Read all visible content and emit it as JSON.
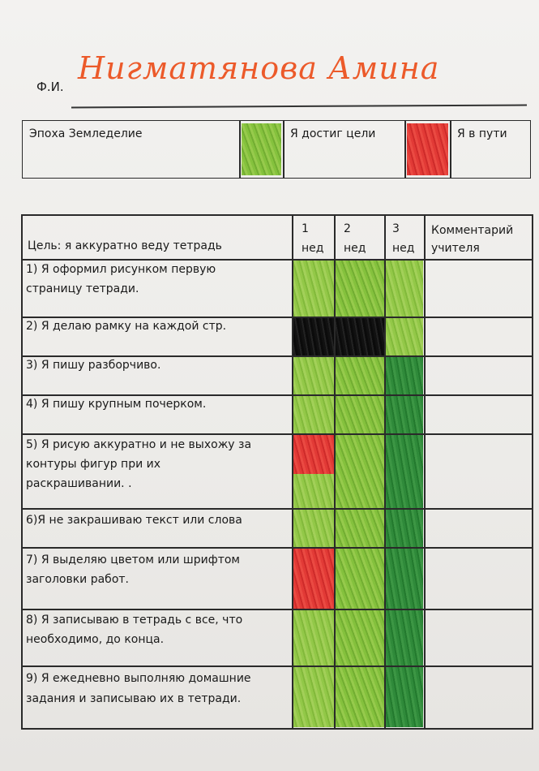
{
  "header": {
    "fio_label": "Ф.И.",
    "student_name": "Нигматянова Амина"
  },
  "legend": {
    "epoch": "Эпоха Земледелие",
    "achieved": "Я достиг цели",
    "in_progress": "Я в пути"
  },
  "table": {
    "goal_header": "Цель: я  аккуратно веду тетрадь",
    "week_headers": [
      {
        "num": "1",
        "unit": "нед"
      },
      {
        "num": "2",
        "unit": "нед"
      },
      {
        "num": "3",
        "unit": "нед"
      }
    ],
    "comment_header_1": "Комментарий",
    "comment_header_2": "учителя",
    "rows": [
      {
        "line1": "1) Я оформил рисунком первую",
        "line2": "страницу тетради.",
        "line3": "",
        "weeks": [
          "green",
          "green",
          "green"
        ]
      },
      {
        "line1": "2) Я делаю рамку на каждой стр.",
        "line2": "",
        "line3": "",
        "weeks": [
          "black",
          "black",
          "green"
        ]
      },
      {
        "line1": "3) Я пишу разборчиво.",
        "line2": "",
        "line3": "",
        "weeks": [
          "green",
          "green",
          "dark-green"
        ]
      },
      {
        "line1": "4) Я пишу крупным почерком.",
        "line2": "",
        "line3": "",
        "weeks": [
          "green",
          "green",
          "dark-green"
        ]
      },
      {
        "line1": "5) Я  рисую аккуратно и  не выхожу за",
        "line2": "контуры  фигур  при их",
        "line3": "раскрашивании. .",
        "weeks": [
          "red/green",
          "green",
          "dark-green"
        ]
      },
      {
        "line1": "6)Я не закрашиваю текст или слова",
        "line2": "",
        "line3": "",
        "weeks": [
          "green",
          "green",
          "dark-green"
        ]
      },
      {
        "line1": "7) Я выделяю цветом или шрифтом",
        "line2": "заголовки работ.",
        "line3": "",
        "weeks": [
          "red",
          "green",
          "dark-green"
        ]
      },
      {
        "line1": "8) Я  записываю  в тетрадь с все, что",
        "line2": "необходимо,  до конца.",
        "line3": "",
        "weeks": [
          "green",
          "green",
          "dark-green"
        ]
      },
      {
        "line1": "9) Я ежедневно выполняю домашние",
        "line2": "задания и  записываю их в тетради.",
        "line3": "",
        "weeks": [
          "green",
          "green",
          "dark-green"
        ]
      }
    ]
  },
  "colors": {
    "name_ink": "#ec5a2a",
    "green": "#86c23a",
    "dark_green": "#2f8a3a",
    "red": "#e23a36",
    "black": "#111111"
  }
}
